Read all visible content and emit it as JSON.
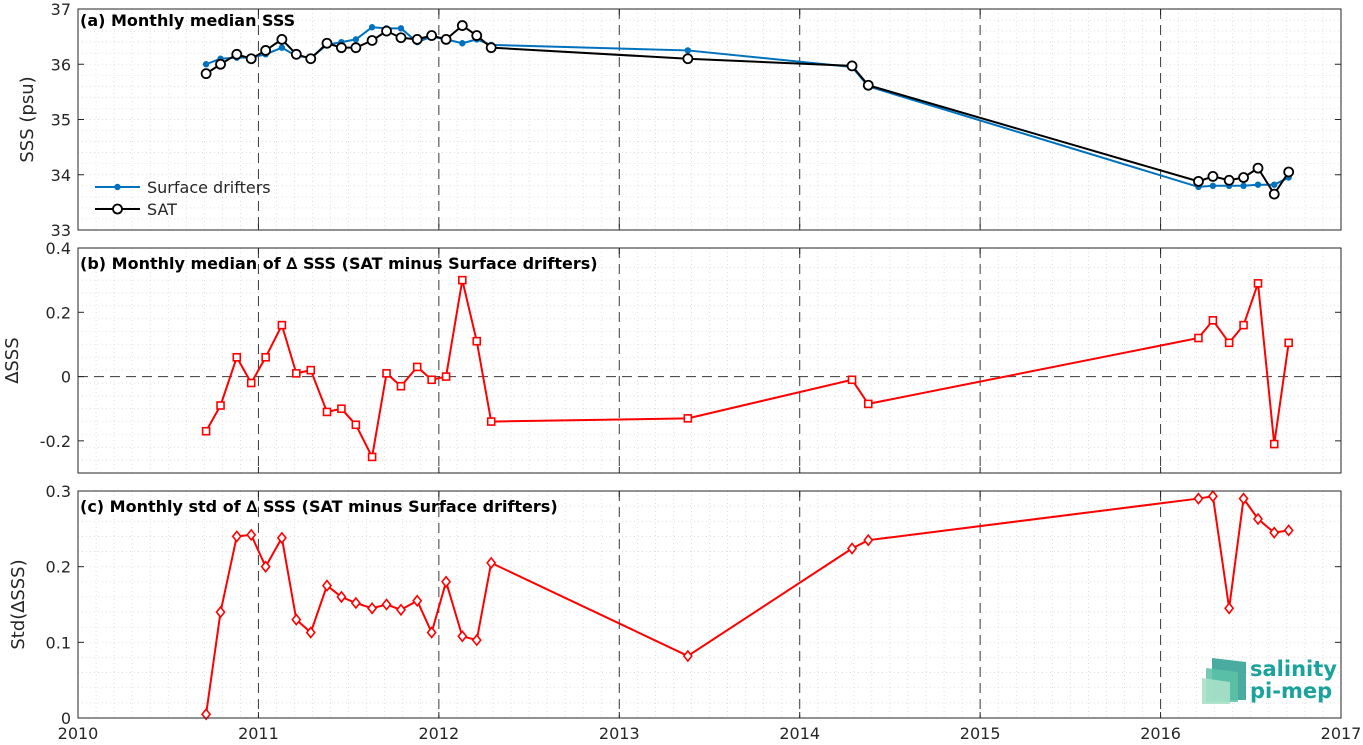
{
  "chart_data": [
    {
      "type": "line",
      "title": "(a) Monthly median SSS",
      "xlabel": "",
      "ylabel": "SSS (psu)",
      "xlim": [
        2010,
        2017
      ],
      "ylim": [
        33,
        37
      ],
      "yticks": [
        33,
        34,
        35,
        36,
        37
      ],
      "grid": "minor dotted, major dashed vertical at years",
      "legend": "bottom-left",
      "series": [
        {
          "name": "Surface drifters",
          "color": "#0072bd",
          "marker": "dot",
          "x": [
            2010.71,
            2010.79,
            2010.88,
            2010.96,
            2011.04,
            2011.13,
            2011.21,
            2011.29,
            2011.38,
            2011.46,
            2011.54,
            2011.63,
            2011.71,
            2011.79,
            2011.88,
            2011.96,
            2012.04,
            2012.13,
            2012.21,
            2012.29,
            2013.38,
            2014.29,
            2014.38,
            2016.21,
            2016.29,
            2016.38,
            2016.46,
            2016.54,
            2016.63,
            2016.71
          ],
          "values": [
            36.0,
            36.1,
            36.12,
            36.12,
            36.18,
            36.3,
            36.15,
            36.12,
            36.35,
            36.4,
            36.45,
            36.67,
            36.65,
            36.65,
            36.4,
            36.5,
            36.45,
            36.38,
            36.45,
            36.35,
            36.25,
            35.95,
            35.6,
            33.78,
            33.8,
            33.8,
            33.8,
            33.82,
            33.82,
            33.95
          ]
        },
        {
          "name": "SAT",
          "color": "#000000",
          "marker": "circle",
          "x": [
            2010.71,
            2010.79,
            2010.88,
            2010.96,
            2011.04,
            2011.13,
            2011.21,
            2011.29,
            2011.38,
            2011.46,
            2011.54,
            2011.63,
            2011.71,
            2011.79,
            2011.88,
            2011.96,
            2012.04,
            2012.13,
            2012.21,
            2012.29,
            2013.38,
            2014.29,
            2014.38,
            2016.21,
            2016.29,
            2016.38,
            2016.46,
            2016.54,
            2016.63,
            2016.71
          ],
          "values": [
            35.83,
            36.0,
            36.18,
            36.1,
            36.25,
            36.45,
            36.18,
            36.1,
            36.38,
            36.3,
            36.3,
            36.43,
            36.6,
            36.48,
            36.45,
            36.52,
            36.45,
            36.7,
            36.52,
            36.3,
            36.1,
            35.97,
            35.62,
            33.88,
            33.97,
            33.9,
            33.95,
            34.12,
            33.65,
            34.05
          ]
        }
      ]
    },
    {
      "type": "line",
      "title": "(b) Monthly median of ∆ SSS (SAT minus Surface drifters)",
      "xlabel": "",
      "ylabel": "∆SSS",
      "xlim": [
        2010,
        2017
      ],
      "ylim": [
        -0.3,
        0.4
      ],
      "yticks": [
        -0.2,
        0,
        0.2,
        0.4
      ],
      "ytick_labels": [
        "-0.2",
        "0",
        "0.2",
        "0.4"
      ],
      "zero_line": "dashed",
      "series": [
        {
          "color": "#ff0000",
          "marker": "square",
          "x": [
            2010.71,
            2010.79,
            2010.88,
            2010.96,
            2011.04,
            2011.13,
            2011.21,
            2011.29,
            2011.38,
            2011.46,
            2011.54,
            2011.63,
            2011.71,
            2011.79,
            2011.88,
            2011.96,
            2012.04,
            2012.13,
            2012.21,
            2012.29,
            2013.38,
            2014.29,
            2014.38,
            2016.21,
            2016.29,
            2016.38,
            2016.46,
            2016.54,
            2016.63,
            2016.71
          ],
          "values": [
            -0.17,
            -0.09,
            0.06,
            -0.02,
            0.06,
            0.16,
            0.01,
            0.02,
            -0.11,
            -0.1,
            -0.15,
            -0.25,
            0.01,
            -0.03,
            0.03,
            -0.01,
            0.0,
            0.3,
            0.11,
            -0.14,
            -0.13,
            -0.01,
            -0.085,
            0.12,
            0.175,
            0.105,
            0.16,
            0.29,
            -0.21,
            0.105
          ]
        }
      ]
    },
    {
      "type": "line",
      "title": "(c) Monthly std of ∆ SSS (SAT minus Surface drifters)",
      "xlabel": "",
      "ylabel": "Std(∆SSS)",
      "xlim": [
        2010,
        2017
      ],
      "ylim": [
        0,
        0.3
      ],
      "yticks": [
        0,
        0.1,
        0.2,
        0.3
      ],
      "ytick_labels": [
        "0",
        "0.1",
        "0.2",
        "0.3"
      ],
      "xticks": [
        2010,
        2011,
        2012,
        2013,
        2014,
        2015,
        2016,
        2017
      ],
      "xtick_labels": [
        "2010",
        "2011",
        "2012",
        "2013",
        "2014",
        "2015",
        "2016",
        "2017"
      ],
      "series": [
        {
          "color": "#ff0000",
          "marker": "diamond",
          "x": [
            2010.71,
            2010.79,
            2010.88,
            2010.96,
            2011.04,
            2011.13,
            2011.21,
            2011.29,
            2011.38,
            2011.46,
            2011.54,
            2011.63,
            2011.71,
            2011.79,
            2011.88,
            2011.96,
            2012.04,
            2012.13,
            2012.21,
            2012.29,
            2013.38,
            2014.29,
            2014.38,
            2016.21,
            2016.29,
            2016.38,
            2016.46,
            2016.54,
            2016.63,
            2016.71
          ],
          "values": [
            0.005,
            0.14,
            0.24,
            0.242,
            0.2,
            0.238,
            0.13,
            0.113,
            0.175,
            0.16,
            0.152,
            0.145,
            0.15,
            0.143,
            0.155,
            0.113,
            0.18,
            0.108,
            0.103,
            0.205,
            0.082,
            0.224,
            0.235,
            0.29,
            0.293,
            0.145,
            0.29,
            0.263,
            0.245,
            0.248
          ]
        }
      ]
    }
  ],
  "logo": {
    "line1": "salinity",
    "line2": "pi-mep"
  }
}
